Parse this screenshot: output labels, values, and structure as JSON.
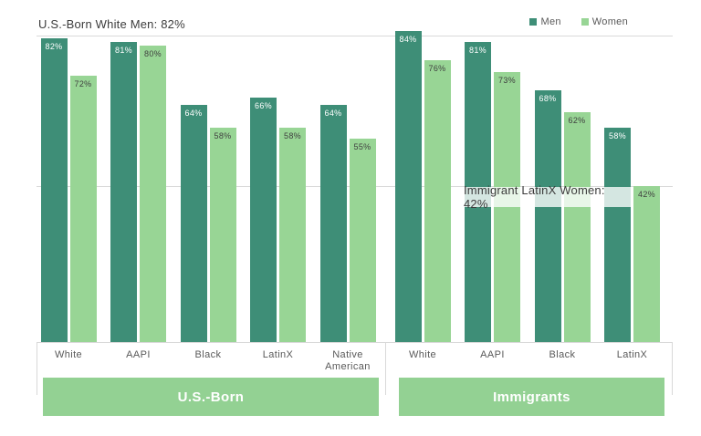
{
  "chart_data": {
    "type": "bar",
    "value_suffix": "%",
    "ylim": [
      0,
      88
    ],
    "grid": "off",
    "legend_position": "top-right",
    "legend": [
      {
        "name": "Men",
        "color": "#3e8e77"
      },
      {
        "name": "Women",
        "color": "#98d595"
      }
    ],
    "sections": [
      {
        "label": "U.S.-Born",
        "categories": [
          "White",
          "AAPI",
          "Black",
          "LatinX",
          "Native American"
        ],
        "series": [
          {
            "name": "Men",
            "values": [
              82,
              81,
              64,
              66,
              64
            ]
          },
          {
            "name": "Women",
            "values": [
              72,
              80,
              58,
              58,
              55
            ]
          }
        ]
      },
      {
        "label": "Immigrants",
        "categories": [
          "White",
          "AAPI",
          "Black",
          "LatinX"
        ],
        "series": [
          {
            "name": "Men",
            "values": [
              84,
              81,
              68,
              58
            ]
          },
          {
            "name": "Women",
            "values": [
              76,
              73,
              62,
              42
            ]
          }
        ]
      }
    ],
    "annotations": [
      {
        "text": "U.S.-Born White Men: 82%",
        "value": 82,
        "position": "top-left"
      },
      {
        "text": "Immigrant LatinX Women: 42%",
        "value": 42,
        "position": "on-line-right"
      }
    ]
  },
  "colors": {
    "men_bar": "#3e8e77",
    "women_bar": "#98d595",
    "band_background": "#93d193",
    "reference_line": "#d9d9d9",
    "axis_line": "#d9d9d9",
    "label_on_dark": "#ffffff",
    "label_on_light": "#3f3f3f",
    "tick_text": "#595959",
    "annotation_text": "#3c3c3c",
    "band_text": "#ffffff"
  }
}
